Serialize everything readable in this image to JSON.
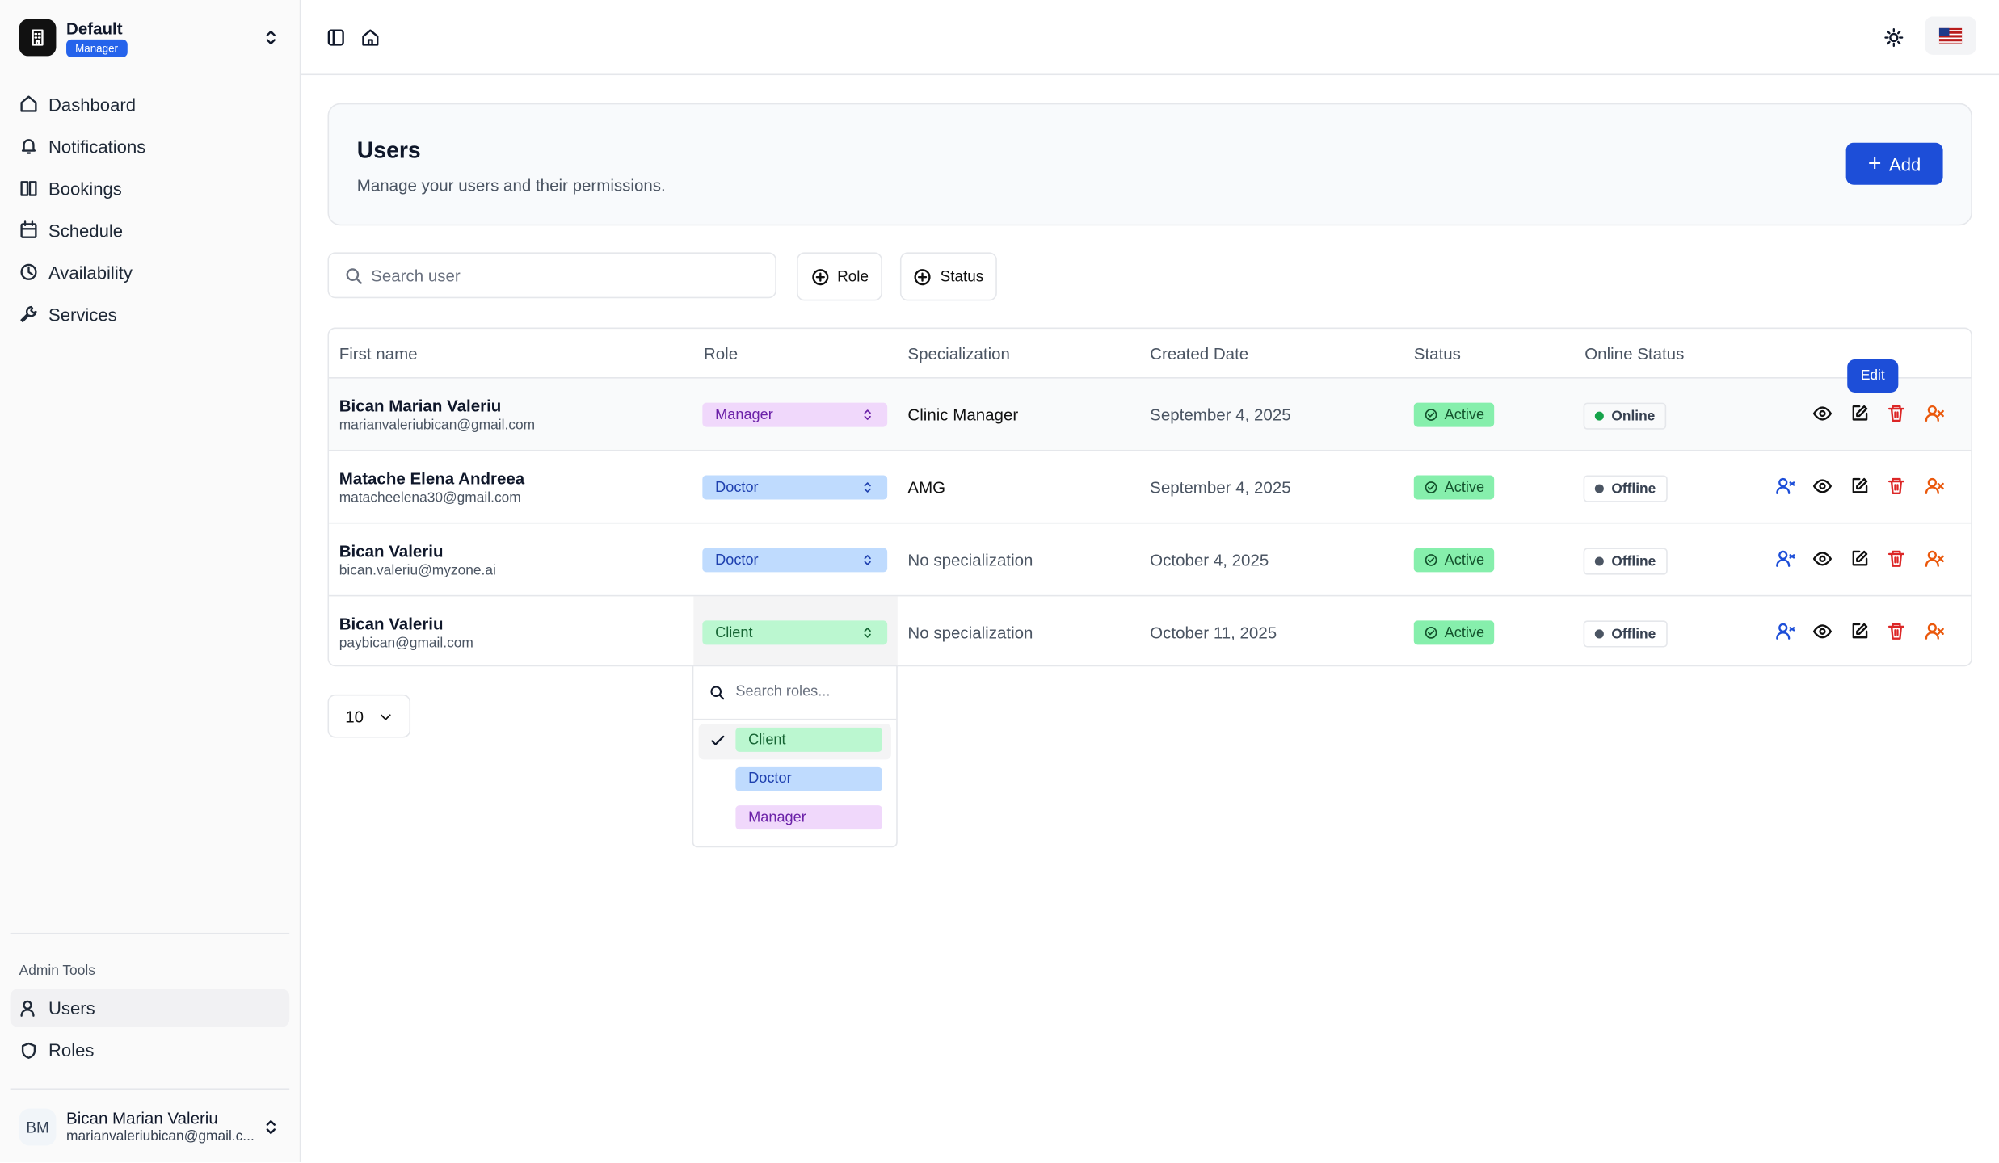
{
  "sidebar": {
    "workspace": "Default",
    "workspace_badge": "Manager",
    "nav": [
      "Dashboard",
      "Notifications",
      "Bookings",
      "Schedule",
      "Availability",
      "Services"
    ],
    "section": "Admin Tools",
    "admin_nav": [
      "Users",
      "Roles"
    ],
    "user": {
      "initials": "BM",
      "name": "Bican Marian Valeriu",
      "email": "marianvaleriubican@gmail.c..."
    }
  },
  "header": {
    "title": "Users",
    "subtitle": "Manage your users and their permissions.",
    "add_button": "Add"
  },
  "filters": {
    "search_placeholder": "Search user",
    "role": "Role",
    "status": "Status"
  },
  "table": {
    "columns": [
      "First name",
      "Role",
      "Specialization",
      "Created Date",
      "Status",
      "Online Status"
    ],
    "rows": [
      {
        "name": "Bican Marian Valeriu",
        "email": "marianvaleriubican@gmail.com",
        "role": "Manager",
        "specialization": "Clinic Manager",
        "created": "September 4, 2025",
        "status": "Active",
        "online": "Online"
      },
      {
        "name": "Matache Elena Andreea",
        "email": "matacheelena30@gmail.com",
        "role": "Doctor",
        "specialization": "AMG",
        "created": "September 4, 2025",
        "status": "Active",
        "online": "Offline"
      },
      {
        "name": "Bican Valeriu",
        "email": "bican.valeriu@myzone.ai",
        "role": "Doctor",
        "specialization": "No specialization",
        "created": "October 4, 2025",
        "status": "Active",
        "online": "Offline"
      },
      {
        "name": "Bican Valeriu",
        "email": "paybican@gmail.com",
        "role": "Client",
        "specialization": "No specialization",
        "created": "October 11, 2025",
        "status": "Active",
        "online": "Offline"
      }
    ]
  },
  "tooltip": "Edit",
  "role_dropdown": {
    "search_placeholder": "Search roles...",
    "options": [
      "Client",
      "Doctor",
      "Manager"
    ]
  },
  "page_size": "10"
}
